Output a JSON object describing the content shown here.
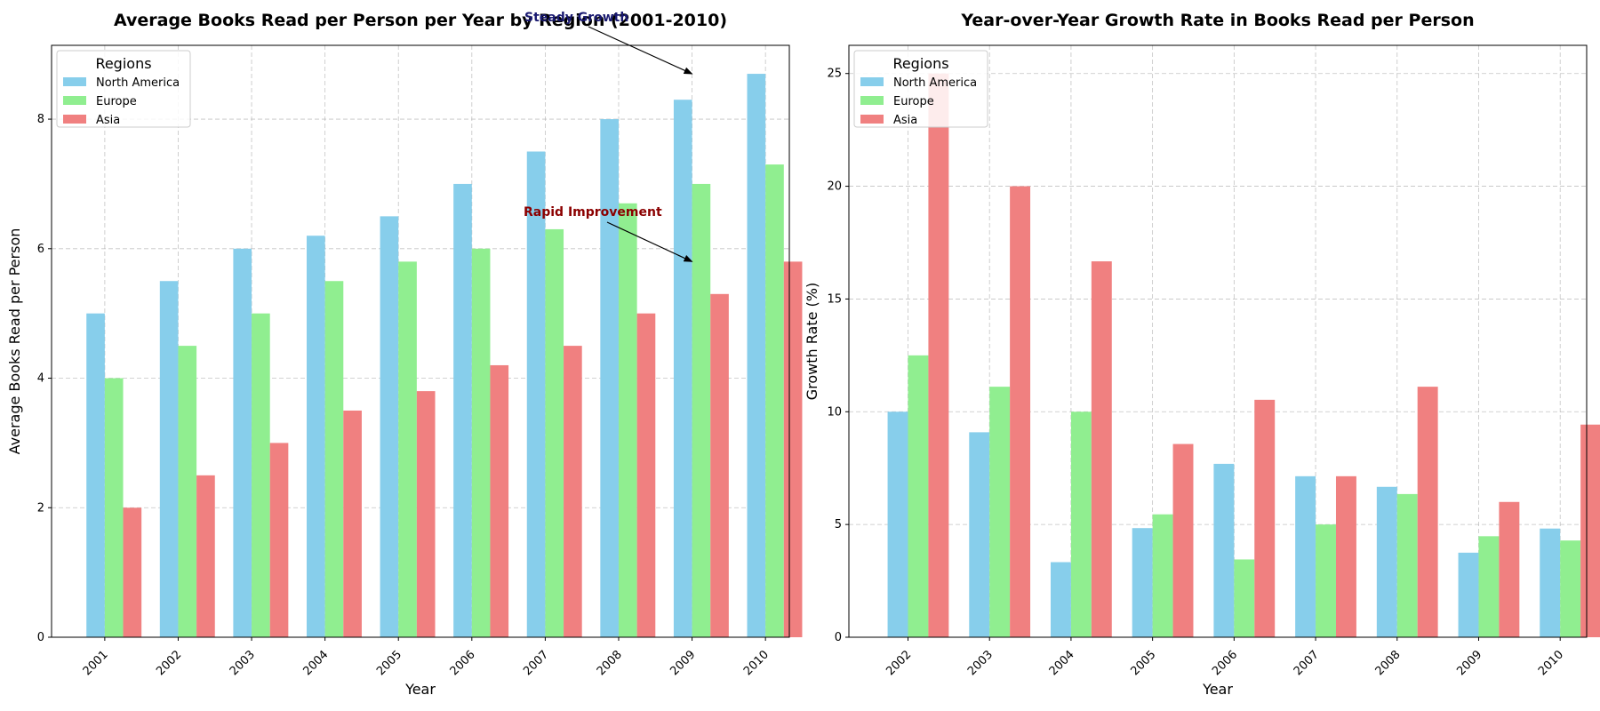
{
  "colors": {
    "North America": "#87CEEB",
    "Europe": "#90EE90",
    "Asia": "#F08080",
    "grid": "#b0b0b0",
    "steady_annotation": "#191970",
    "rapid_annotation": "#8B0000"
  },
  "chart_data": [
    {
      "type": "bar",
      "title": "Average Books Read per Person per Year by Region (2001-2010)",
      "xlabel": "Year",
      "ylabel": "Average Books Read per Person",
      "categories": [
        "2001",
        "2002",
        "2003",
        "2004",
        "2005",
        "2006",
        "2007",
        "2008",
        "2009",
        "2010"
      ],
      "ylim": [
        0,
        9.14
      ],
      "yticks": [
        0,
        2,
        4,
        6,
        8
      ],
      "ytick_labels": [
        "0",
        "2",
        "4",
        "6",
        "8"
      ],
      "grid": true,
      "legend": {
        "title": "Regions",
        "placement": "top-left"
      },
      "series": [
        {
          "name": "North America",
          "values": [
            5.0,
            5.5,
            6.0,
            6.2,
            6.5,
            7.0,
            7.5,
            8.0,
            8.3,
            8.7
          ]
        },
        {
          "name": "Europe",
          "values": [
            4.0,
            4.5,
            5.0,
            5.5,
            5.8,
            6.0,
            6.3,
            6.7,
            7.0,
            7.3
          ]
        },
        {
          "name": "Asia",
          "values": [
            2.0,
            2.5,
            3.0,
            3.5,
            3.8,
            4.2,
            4.5,
            5.0,
            5.3,
            5.8
          ]
        }
      ],
      "annotations": [
        {
          "text": "Steady Growth",
          "x": "2009",
          "y": 8.7,
          "color": "#191970"
        },
        {
          "text": "Rapid Improvement",
          "x": "2009",
          "y": 5.8,
          "color": "#8B0000"
        }
      ]
    },
    {
      "type": "bar",
      "title": "Year-over-Year Growth Rate in Books Read per Person",
      "xlabel": "Year",
      "ylabel": "Growth Rate (%)",
      "categories": [
        "2002",
        "2003",
        "2004",
        "2005",
        "2006",
        "2007",
        "2008",
        "2009",
        "2010"
      ],
      "ylim": [
        0,
        26.25
      ],
      "yticks": [
        0,
        5,
        10,
        15,
        20,
        25
      ],
      "ytick_labels": [
        "0",
        "5",
        "10",
        "15",
        "20",
        "25"
      ],
      "grid": true,
      "legend": {
        "title": "Regions",
        "placement": "top-left"
      },
      "series": [
        {
          "name": "North America",
          "values": [
            10.0,
            9.09,
            3.33,
            4.84,
            7.69,
            7.14,
            6.67,
            3.75,
            4.82
          ]
        },
        {
          "name": "Europe",
          "values": [
            12.5,
            11.11,
            10.0,
            5.45,
            3.45,
            5.0,
            6.35,
            4.48,
            4.29
          ]
        },
        {
          "name": "Asia",
          "values": [
            25.0,
            20.0,
            16.67,
            8.57,
            10.53,
            7.14,
            11.11,
            6.0,
            9.43
          ]
        }
      ],
      "annotations": []
    }
  ]
}
